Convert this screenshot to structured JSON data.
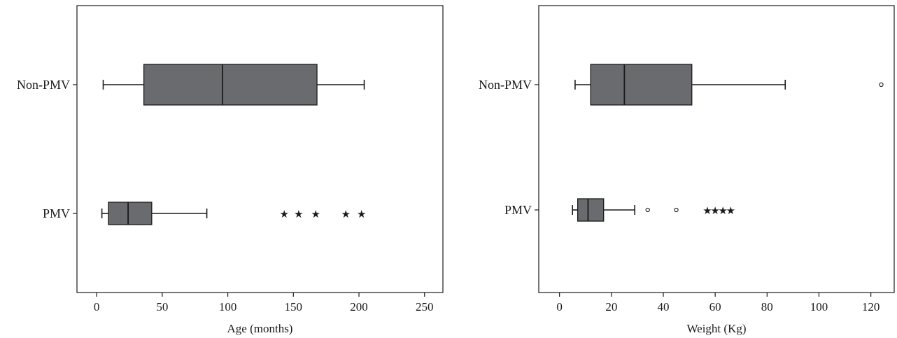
{
  "chart_data": [
    {
      "type": "boxplot",
      "orientation": "horizontal",
      "xlabel": "Age (months)",
      "xlim": [
        -15,
        264
      ],
      "xticks": [
        0,
        50,
        100,
        150,
        200,
        250
      ],
      "categories": [
        "Non-PMV",
        "PMV"
      ],
      "boxes": [
        {
          "category": "Non-PMV",
          "whisker_low": 5,
          "q1": 36,
          "median": 96,
          "q3": 168,
          "whisker_high": 204,
          "outliers": [],
          "extremes": []
        },
        {
          "category": "PMV",
          "whisker_low": 4,
          "q1": 9,
          "median": 24,
          "q3": 42,
          "whisker_high": 84,
          "outliers": [],
          "extremes": [
            143,
            154,
            167,
            190,
            202
          ]
        }
      ],
      "box_color": "#6a6b6f"
    },
    {
      "type": "boxplot",
      "orientation": "horizontal",
      "xlabel": "Weight (Kg)",
      "xlim": [
        -8,
        129
      ],
      "xticks": [
        0,
        20,
        40,
        60,
        80,
        100,
        120
      ],
      "categories": [
        "Non-PMV",
        "PMV"
      ],
      "boxes": [
        {
          "category": "Non-PMV",
          "whisker_low": 6,
          "q1": 12,
          "median": 25,
          "q3": 51,
          "whisker_high": 87,
          "outliers": [
            124
          ],
          "extremes": []
        },
        {
          "category": "PMV",
          "whisker_low": 5,
          "q1": 7,
          "median": 11,
          "q3": 17,
          "whisker_high": 29,
          "outliers": [
            34,
            45
          ],
          "extremes": [
            57,
            60,
            63,
            66
          ]
        }
      ],
      "box_color": "#6a6b6f"
    }
  ]
}
